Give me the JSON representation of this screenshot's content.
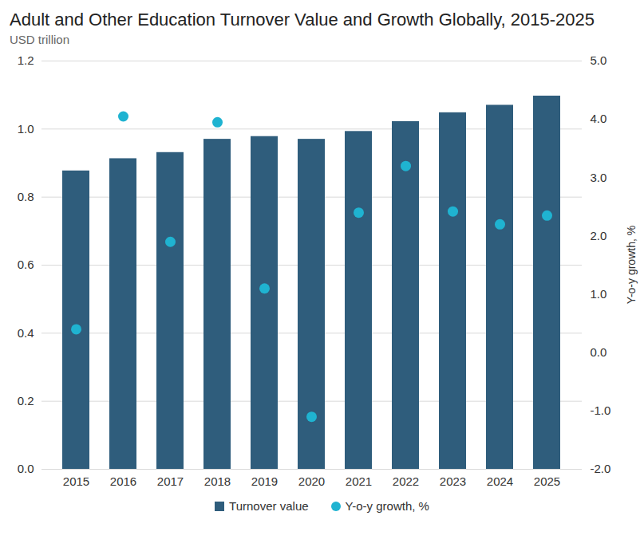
{
  "chart_data": {
    "type": "bar",
    "title": "Adult and Other Education Turnover Value and Growth Globally, 2015-2025",
    "subtitle": "USD trillion",
    "y2label": "Y-o-y growth, %",
    "categories": [
      "2015",
      "2016",
      "2017",
      "2018",
      "2019",
      "2020",
      "2021",
      "2022",
      "2023",
      "2024",
      "2025"
    ],
    "series": [
      {
        "name": "Turnover value",
        "type": "bar",
        "color": "#2f5d7c",
        "values": [
          0.877,
          0.913,
          0.931,
          0.97,
          0.978,
          0.97,
          0.993,
          1.022,
          1.048,
          1.07,
          1.097
        ]
      },
      {
        "name": "Y-o-y growth, %",
        "type": "scatter",
        "axis": "y2",
        "marker": "circle",
        "color": "#1fb3d1",
        "values": [
          0.4,
          4.05,
          1.9,
          3.95,
          1.1,
          -1.1,
          2.4,
          3.2,
          2.42,
          2.2,
          2.35
        ]
      }
    ],
    "ylim": [
      0,
      1.2
    ],
    "yticks": [
      {
        "value": 0,
        "label": "0.0"
      },
      0.2,
      0.4,
      0.6,
      0.8,
      {
        "value": 1,
        "label": "1.0"
      },
      1.2
    ],
    "y2lim": [
      -2,
      5
    ],
    "y2ticks": [
      {
        "value": -2,
        "label": "-2.0"
      },
      {
        "value": -1,
        "label": "-1.0"
      },
      {
        "value": 0,
        "label": "0.0"
      },
      {
        "value": 1,
        "label": "1.0"
      },
      {
        "value": 2,
        "label": "2.0"
      },
      {
        "value": 3,
        "label": "3.0"
      },
      {
        "value": 4,
        "label": "4.0"
      },
      {
        "value": 5,
        "label": "5.0"
      }
    ],
    "grid": true,
    "legend": "bottom"
  }
}
